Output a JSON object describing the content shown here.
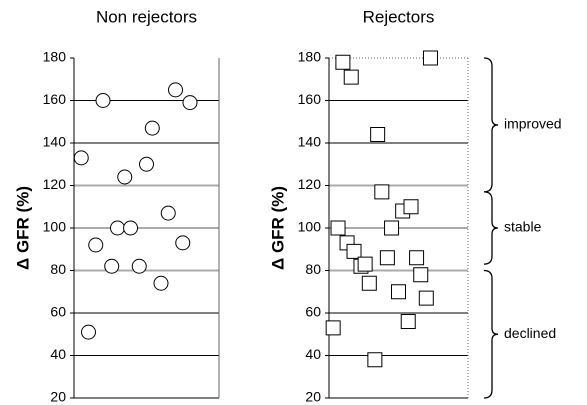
{
  "chart_data": [
    {
      "type": "scatter",
      "title": "Non rejectors",
      "y_label": "Δ GFR (%)",
      "marker": "circle",
      "values": [
        133,
        160,
        51,
        92,
        82,
        100,
        124,
        100,
        82,
        130,
        147,
        74,
        107,
        165,
        93,
        159
      ],
      "ylim": [
        20,
        180
      ],
      "yticks": [
        20,
        40,
        60,
        80,
        100,
        120,
        140,
        160,
        180
      ],
      "grid": true,
      "highlight_range": [
        80,
        120
      ]
    },
    {
      "type": "scatter",
      "title": "Rejectors",
      "y_label": "Δ GFR (%)",
      "marker": "square",
      "values": [
        100,
        178,
        171,
        144,
        117,
        93,
        89,
        82,
        83,
        74,
        86,
        100,
        108,
        110,
        70,
        56,
        86,
        78,
        67,
        180,
        53,
        38
      ],
      "ylim": [
        20,
        180
      ],
      "yticks": [
        20,
        40,
        60,
        80,
        100,
        120,
        140,
        160,
        180
      ],
      "grid": true,
      "highlight_range": [
        80,
        120
      ],
      "bands": [
        {
          "label": "improved",
          "range": [
            117,
            180
          ]
        },
        {
          "label": "stable",
          "range": [
            83,
            117
          ]
        },
        {
          "label": "declined",
          "range": [
            20,
            80
          ]
        }
      ]
    }
  ]
}
